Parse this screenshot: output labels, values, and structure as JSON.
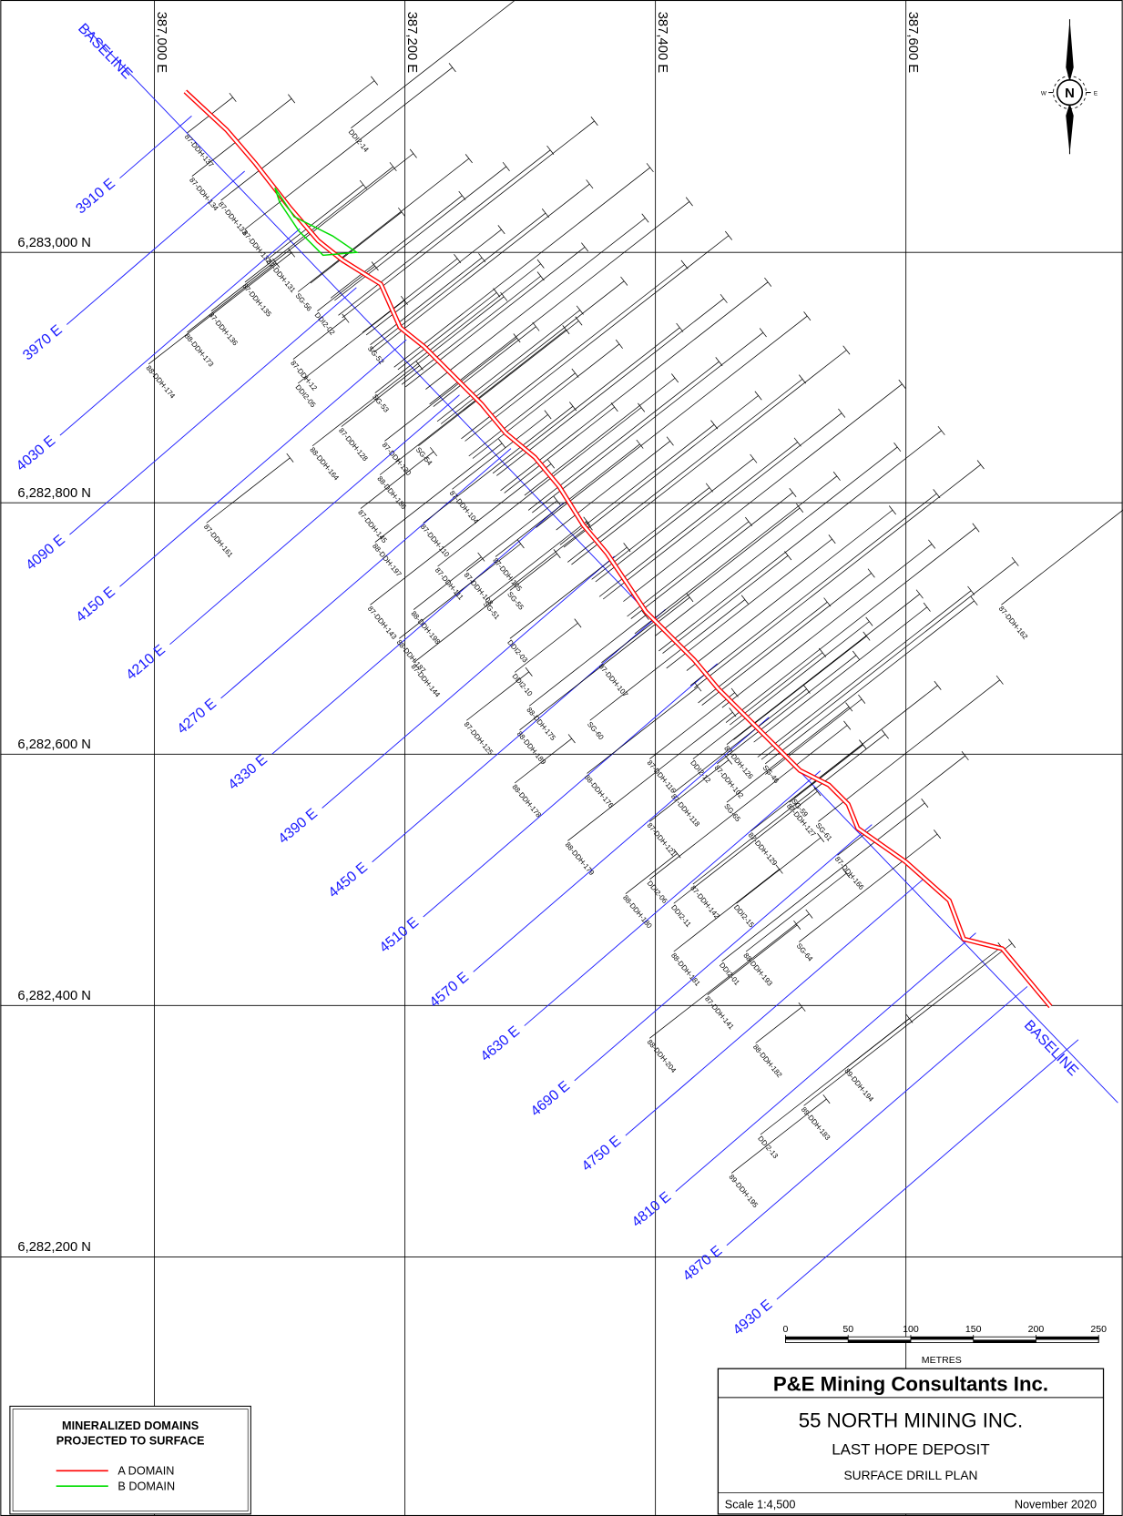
{
  "grid": {
    "eastings": [
      "387,000 E",
      "387,200 E",
      "387,400 E",
      "387,600 E"
    ],
    "northings": [
      "6,283,000 N",
      "6,282,800 N",
      "6,282,600 N",
      "6,282,400 N",
      "6,282,200 N"
    ]
  },
  "baseline": {
    "label": "BASELINE"
  },
  "sections": [
    "3910 E",
    "3970 E",
    "4030 E",
    "4090 E",
    "4150 E",
    "4210 E",
    "4270 E",
    "4330 E",
    "4390 E",
    "4450 E",
    "4510 E",
    "4570 E",
    "4630 E",
    "4690 E",
    "4750 E",
    "4810 E",
    "4870 E",
    "4930 E"
  ],
  "drill_holes": [
    "87-DDH-137",
    "87-DDH-134",
    "87-DDH-133",
    "87-DDH-132",
    "87-DDH-131",
    "87-DDH-135",
    "87-DDH-136",
    "88-DDH-173",
    "88-DDH-174",
    "DDI2-14",
    "87-DDH-161",
    "87-DDH-162",
    "88-DDH-164",
    "87-DDH-128",
    "87-DDH-130",
    "88-DDH-186",
    "87-DDH-145",
    "88-DDH-197",
    "87-DDH-143",
    "88-DDH-198",
    "88-DDH-187",
    "87-DDH-144",
    "87-DDH-125",
    "88-DDH-175",
    "88-DDH-189",
    "88-DDH-178",
    "88-DDH-176",
    "88-DDH-179",
    "88-DDH-180",
    "88-DDH-181",
    "88-DDH-204",
    "88-DDH-182",
    "88-DDH-193",
    "89-DDH-194",
    "89-DDH-183",
    "89-DDH-195",
    "DDI2-13",
    "DDI2-01",
    "87-DDH-141",
    "DDI2-11",
    "DDI2-06",
    "DDI2-15",
    "SG-64",
    "87-DDH-142",
    "87-DDH-121",
    "87-DDH-118",
    "87-DDH-129",
    "87-DDH-127",
    "87-DDH-166",
    "SG-61",
    "SG-59",
    "SG-65",
    "DDI2-12",
    "DDI2-10",
    "DDI2-03",
    "SG-56",
    "DDI2-02",
    "SG-52",
    "SG-53",
    "87-DDH-12",
    "DDI2-05",
    "SG-54",
    "SG-55",
    "SG-51",
    "SG-60",
    "SG-46",
    "87-DDH-104",
    "87-DDH-110",
    "87-DDH-111",
    "87-DDH-108",
    "87-DDH-105",
    "87-DDH-107",
    "87-DDH-116",
    "87-DDH-102",
    "87-DDH-126"
  ],
  "compass": {
    "north": "N",
    "west": "W",
    "east": "E"
  },
  "scale_bar": {
    "ticks": [
      0,
      50,
      100,
      150,
      200,
      250
    ],
    "unit": "METRES"
  },
  "legend": {
    "title": [
      "MINERALIZED DOMAINS",
      "PROJECTED TO SURFACE"
    ],
    "domains": [
      {
        "name": "A DOMAIN",
        "color": "#ff0000"
      },
      {
        "name": "B DOMAIN",
        "color": "#00dd00"
      }
    ]
  },
  "title_block": {
    "company": "P&E Mining Consultants Inc.",
    "client": "55 NORTH MINING INC.",
    "project": "LAST HOPE DEPOSIT",
    "drawing": "SURFACE DRILL PLAN",
    "scale": "Scale 1:4,500",
    "date": "November 2020"
  }
}
